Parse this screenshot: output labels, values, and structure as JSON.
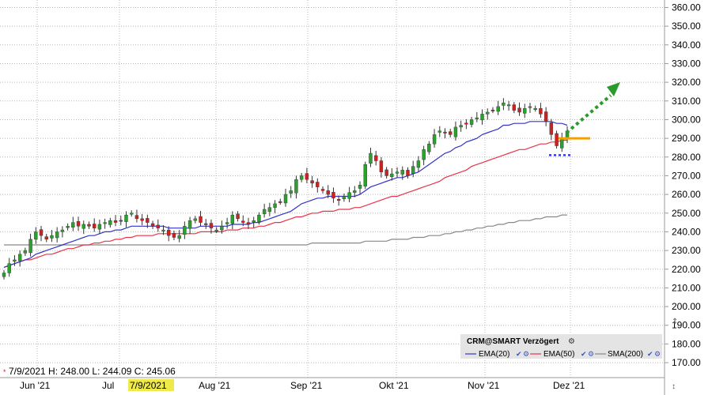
{
  "chart_data": {
    "type": "candlestick",
    "y_axis": {
      "ticks": [
        "360.00",
        "350.00",
        "340.00",
        "330.00",
        "320.00",
        "310.00",
        "300.00",
        "290.00",
        "280.00",
        "270.00",
        "260.00",
        "250.00",
        "240.00",
        "230.00",
        "220.00",
        "210.00",
        "200.00",
        "190.00",
        "180.00",
        "170.00"
      ],
      "ylim": [
        162,
        364
      ]
    },
    "x_axis": {
      "ticks": [
        "Jun '21",
        "Jul",
        "Aug '21",
        "Sep '21",
        "Okt '21",
        "Nov '21",
        "Dez '21"
      ],
      "highlighted_label": "7/9/2021"
    },
    "ohlc_readout": "7/9/2021  H: 248.00  L: 244.09  C: 245.06",
    "legend": {
      "title": "CRM@SMART Verzögert",
      "items": [
        {
          "label": "EMA(20)",
          "color": "#3333cc"
        },
        {
          "label": "EMA(50)",
          "color": "#e8344a"
        },
        {
          "label": "SMA(200)",
          "color": "#888888"
        }
      ]
    },
    "colors": {
      "up": "#2ca02c",
      "down": "#cc2222",
      "wick": "#333333",
      "support": "#f0a000",
      "arrow": "#2a9a2a",
      "stop": "#3333ff"
    },
    "closes": [
      218,
      223,
      225,
      228,
      230,
      236,
      240,
      238,
      236,
      238,
      240,
      241,
      243,
      245,
      243,
      244,
      243,
      242,
      244,
      245,
      246,
      245,
      246,
      249,
      250,
      247,
      246,
      245,
      243,
      242,
      241,
      238,
      237,
      238,
      243,
      246,
      247,
      245,
      244,
      242,
      241,
      243,
      245,
      249,
      247,
      245,
      244,
      246,
      249,
      252,
      253,
      255,
      256,
      260,
      262,
      268,
      270,
      268,
      266,
      264,
      262,
      260,
      258,
      257,
      259,
      261,
      262,
      265,
      276,
      282,
      278,
      272,
      270,
      271,
      272,
      273,
      270,
      275,
      278,
      284,
      287,
      292,
      294,
      293,
      292,
      296,
      297,
      298,
      300,
      301,
      303,
      304,
      305,
      307,
      309,
      308,
      305,
      304,
      306,
      307,
      306,
      303,
      299,
      292,
      286,
      290,
      294
    ],
    "ema20": [
      221,
      222,
      223,
      224,
      225,
      226,
      228,
      229,
      230,
      231,
      232,
      233,
      234,
      235,
      236,
      237,
      238,
      238,
      239,
      240,
      240,
      241,
      241,
      242,
      243,
      243,
      243,
      243,
      243,
      243,
      243,
      242,
      242,
      242,
      242,
      242,
      242,
      243,
      243,
      243,
      243,
      243,
      243,
      244,
      244,
      244,
      244,
      245,
      245,
      246,
      247,
      248,
      249,
      250,
      251,
      253,
      255,
      256,
      257,
      258,
      258,
      259,
      259,
      259,
      259,
      259,
      259,
      260,
      262,
      264,
      265,
      266,
      267,
      268,
      269,
      269,
      270,
      271,
      272,
      274,
      276,
      278,
      280,
      282,
      283,
      285,
      286,
      288,
      289,
      290,
      292,
      293,
      294,
      295,
      297,
      297,
      298,
      298,
      298,
      299,
      299,
      299,
      299,
      299,
      298,
      298,
      297
    ],
    "ema50": [
      221,
      222,
      223,
      224,
      225,
      225,
      226,
      227,
      228,
      228,
      229,
      230,
      231,
      231,
      232,
      233,
      233,
      234,
      234,
      235,
      235,
      236,
      236,
      237,
      237,
      238,
      238,
      238,
      238,
      239,
      239,
      239,
      239,
      239,
      239,
      239,
      239,
      240,
      240,
      240,
      240,
      240,
      241,
      241,
      241,
      242,
      242,
      242,
      243,
      243,
      244,
      245,
      245,
      246,
      247,
      248,
      248,
      249,
      250,
      250,
      251,
      251,
      251,
      252,
      252,
      252,
      253,
      253,
      254,
      255,
      256,
      257,
      258,
      259,
      259,
      260,
      261,
      262,
      263,
      264,
      265,
      266,
      267,
      269,
      270,
      271,
      272,
      273,
      275,
      276,
      277,
      278,
      279,
      280,
      281,
      282,
      283,
      284,
      284,
      285,
      286,
      287,
      287,
      288,
      288,
      289,
      289
    ],
    "sma200": [
      233,
      233,
      233,
      233,
      233,
      233,
      233,
      233,
      233,
      233,
      233,
      233,
      233,
      233,
      233,
      233,
      233,
      233,
      233,
      233,
      233,
      233,
      233,
      233,
      233,
      233,
      233,
      233,
      233,
      233,
      233,
      233,
      233,
      233,
      233,
      233,
      233,
      233,
      233,
      233,
      233,
      233,
      233,
      233,
      233,
      233,
      233,
      233,
      233,
      233,
      233,
      233,
      233,
      233,
      233,
      233,
      233,
      233,
      234,
      234,
      234,
      234,
      234,
      234,
      234,
      234,
      234,
      234,
      235,
      235,
      235,
      235,
      235,
      236,
      236,
      236,
      236,
      237,
      237,
      237,
      238,
      238,
      238,
      239,
      239,
      240,
      240,
      241,
      241,
      242,
      242,
      243,
      243,
      244,
      244,
      245,
      245,
      246,
      246,
      246,
      247,
      247,
      248,
      248,
      248,
      249,
      249
    ]
  }
}
